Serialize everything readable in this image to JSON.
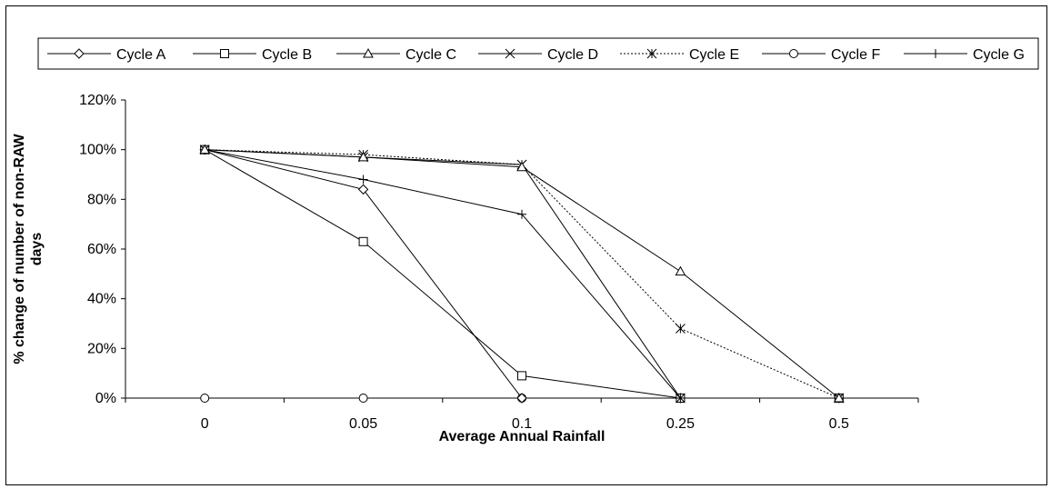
{
  "chart_data": {
    "type": "line",
    "categories": [
      "0",
      "0.05",
      "0.1",
      "0.25",
      "0.5"
    ],
    "xlabel": "Average Annual Rainfall",
    "ylabel_lines": [
      "% change of number of  non-RAW",
      "days"
    ],
    "ylim": [
      0,
      1.2
    ],
    "yticks": [
      "0%",
      "20%",
      "40%",
      "60%",
      "80%",
      "100%",
      "120%"
    ],
    "grid": false,
    "legend_position": "top",
    "series": [
      {
        "name": "Cycle A",
        "marker": "diamond",
        "dash": "solid",
        "values": [
          1.0,
          0.84,
          0.0,
          0.0,
          0.0
        ]
      },
      {
        "name": "Cycle B",
        "marker": "square",
        "dash": "solid",
        "values": [
          1.0,
          0.63,
          0.09,
          0.0,
          0.0
        ]
      },
      {
        "name": "Cycle C",
        "marker": "triangle",
        "dash": "solid",
        "values": [
          1.0,
          0.97,
          0.93,
          0.51,
          0.0
        ]
      },
      {
        "name": "Cycle D",
        "marker": "x",
        "dash": "solid",
        "values": [
          1.0,
          0.97,
          0.94,
          0.0,
          0.0
        ]
      },
      {
        "name": "Cycle E",
        "marker": "star",
        "dash": "dotted",
        "values": [
          1.0,
          0.98,
          0.94,
          0.28,
          0.0
        ]
      },
      {
        "name": "Cycle F",
        "marker": "circle",
        "dash": "solid",
        "values": [
          0.0,
          0.0,
          0.0,
          0.0,
          0.0
        ]
      },
      {
        "name": "Cycle G",
        "marker": "plus",
        "dash": "solid",
        "values": [
          1.0,
          0.88,
          0.74,
          0.0,
          0.0
        ]
      }
    ],
    "colors": {
      "line": "#000000",
      "background": "#ffffff"
    }
  }
}
